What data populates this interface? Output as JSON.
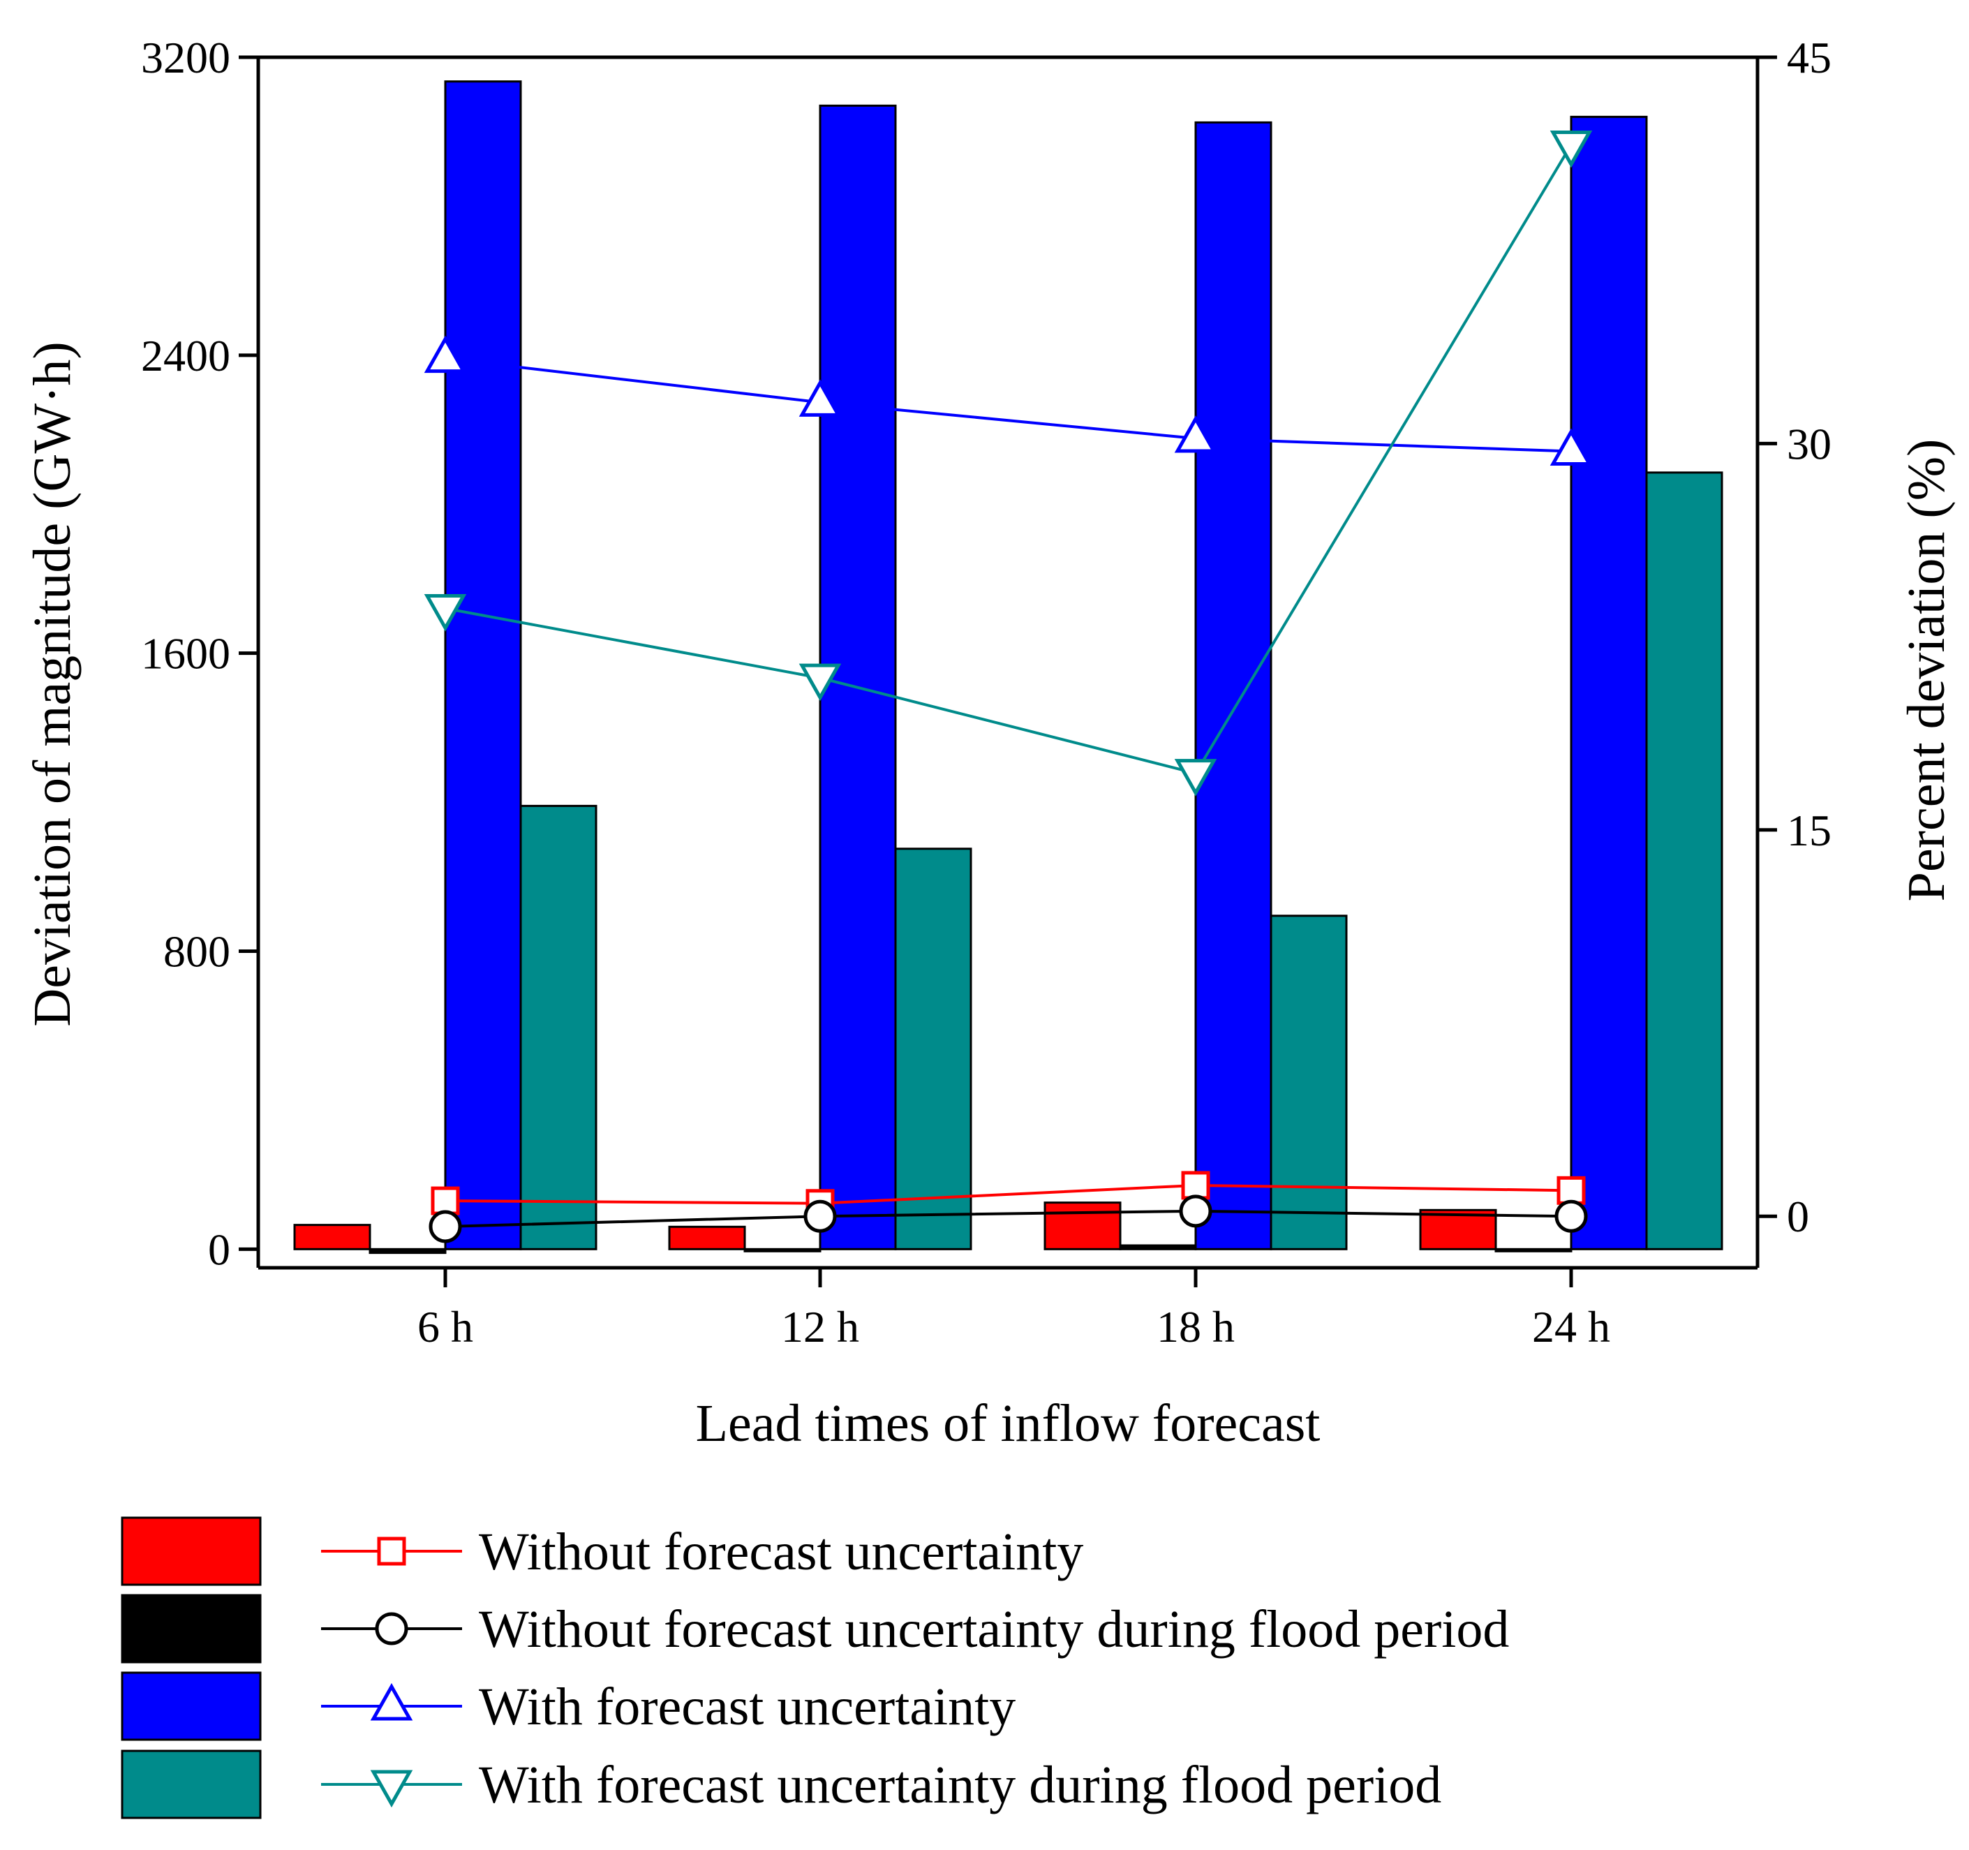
{
  "chart_data": {
    "type": "bar+line",
    "title": "",
    "xlabel": "Lead times of inflow forecast",
    "ylabel": "Deviation of magnitude (GW·h)",
    "ylabel_right": "Percent deviation (%)",
    "categories": [
      "6 h",
      "12 h",
      "18 h",
      "24 h"
    ],
    "ylim": [
      -50,
      3200
    ],
    "ylim_right": [
      -2.0,
      45
    ],
    "yticks": [
      0,
      800,
      1600,
      2400,
      3200
    ],
    "yticks_right": [
      0,
      15,
      30,
      45
    ],
    "grid": false,
    "legend_position": "bottom",
    "bar_series": [
      {
        "name": "Without forecast uncertainty",
        "color": "#ff0000",
        "values": [
          65,
          60,
          125,
          105
        ]
      },
      {
        "name": "Without forecast uncertainty during flood period",
        "color": "#000000",
        "values": [
          -10,
          0,
          10,
          0
        ]
      },
      {
        "name": "With forecast uncertainty",
        "color": "#0000ff",
        "values": [
          3135,
          3070,
          3025,
          3040
        ]
      },
      {
        "name": "With forecast uncertainty during flood period",
        "color": "#008b8b",
        "values": [
          1190,
          1075,
          895,
          2085
        ]
      }
    ],
    "line_series": [
      {
        "name": "Without forecast uncertainty",
        "color": "#ff0000",
        "marker": "square",
        "values": [
          0.6,
          0.5,
          1.2,
          1.0
        ]
      },
      {
        "name": "Without forecast uncertainty during flood period",
        "color": "#000000",
        "marker": "circle",
        "values": [
          -0.4,
          0.0,
          0.2,
          0.0
        ]
      },
      {
        "name": "With forecast uncertainty",
        "color": "#0000ff",
        "marker": "triangle-up",
        "values": [
          33.3,
          31.6,
          30.2,
          29.7
        ]
      },
      {
        "name": "With forecast uncertainty during flood period",
        "color": "#008b8b",
        "marker": "triangle-down",
        "values": [
          23.6,
          20.9,
          17.2,
          41.6
        ]
      }
    ]
  }
}
